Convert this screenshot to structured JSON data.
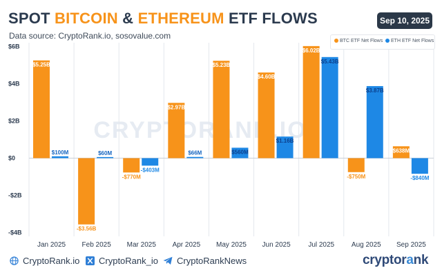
{
  "header": {
    "title_parts": [
      "SPOT ",
      "BITCOIN",
      " & ",
      "ETHEREUM",
      " ETF FLOWS"
    ],
    "subtitle": "Data source: CryptoRank.io, sosovalue.com",
    "date": "Sep 10, 2025"
  },
  "watermark": "CRYPTORANK.IO",
  "colors": {
    "btc": "#f7931a",
    "eth": "#1e88e5",
    "title": "#2b3a4e",
    "badge": "#2b3848"
  },
  "chart_data": {
    "type": "bar",
    "title": "SPOT BITCOIN & ETHEREUM ETF FLOWS",
    "categories": [
      "Jan 2025",
      "Feb 2025",
      "Mar 2025",
      "Apr 2025",
      "May 2025",
      "Jun 2025",
      "Jul 2025",
      "Aug 2025",
      "Sep 2025"
    ],
    "series": [
      {
        "name": "BTC ETF Net Flows",
        "values": [
          5.25,
          -3.56,
          -0.77,
          2.97,
          5.23,
          4.6,
          6.02,
          -0.75,
          0.638
        ],
        "labels": [
          "$5.25B",
          "-$3.56B",
          "-$770M",
          "$2.97B",
          "$5.23B",
          "$4.60B",
          "$6.02B",
          "-$750M",
          "$638M"
        ]
      },
      {
        "name": "ETH ETF Net Flows",
        "values": [
          0.1,
          0.06,
          -0.403,
          0.066,
          0.56,
          1.16,
          5.43,
          3.87,
          -0.84
        ],
        "labels": [
          "$100M",
          "$60M",
          "-$403M",
          "$66M",
          "$560M",
          "$1.16B",
          "$5.43B",
          "$3.87B",
          "-$840M"
        ]
      }
    ],
    "yticks": [
      -4,
      -2,
      0,
      2,
      4,
      6
    ],
    "ytick_labels": [
      "-$4B",
      "-$2B",
      "$0",
      "$2B",
      "$4B",
      "$6B"
    ],
    "ylim": [
      -4.2,
      6.2
    ],
    "xlabel": "",
    "ylabel": "",
    "legend": "top-right",
    "grid": "vertical-separators"
  },
  "footer": {
    "site": "CryptoRank.io",
    "x_handle": "CryptoRank_io",
    "telegram": "CryptoRankNews",
    "brand_parts": [
      "cryptor",
      "a",
      "nk"
    ]
  }
}
